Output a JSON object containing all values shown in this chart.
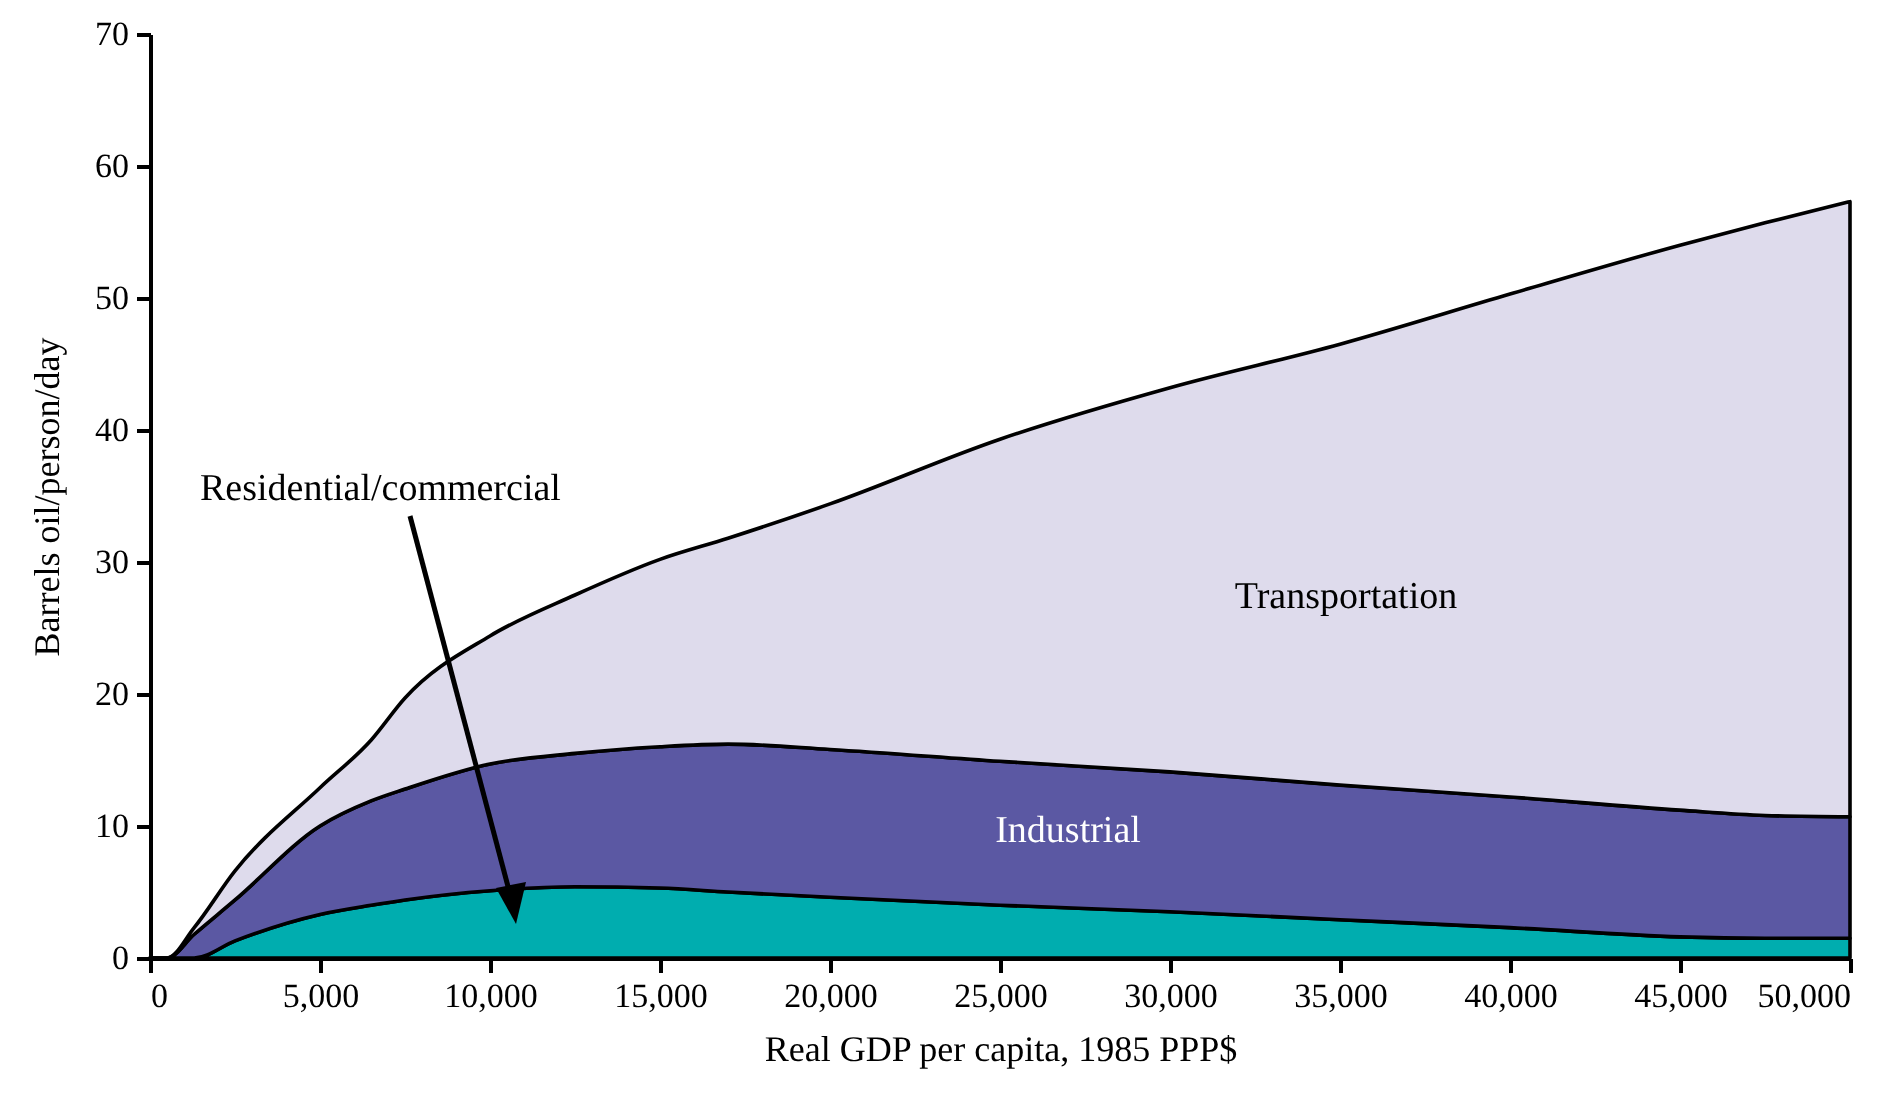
{
  "chart_data": {
    "type": "area",
    "stacked": true,
    "xlabel": "Real GDP per capita, 1985 PPP$",
    "ylabel": "Barrels oil/person/day",
    "x": [
      0,
      500,
      1300,
      2500,
      5000,
      6500,
      7500,
      10000,
      12500,
      15000,
      17000,
      20000,
      25000,
      30000,
      35000,
      40000,
      45000,
      47500,
      50000
    ],
    "series": [
      {
        "name": "Residential/commercial",
        "color": "#00adaf",
        "values": [
          0,
          0,
          0,
          1.3,
          3.3,
          4.0,
          4.4,
          5.1,
          5.4,
          5.3,
          5.0,
          4.6,
          4.0,
          3.5,
          2.9,
          2.3,
          1.6,
          1.5,
          1.5
        ]
      },
      {
        "name": "Industrial",
        "color": "#5b58a3",
        "values": [
          0,
          0,
          1.8,
          3.1,
          6.7,
          7.9,
          8.4,
          9.6,
          10.1,
          10.7,
          11.2,
          11.2,
          10.9,
          10.6,
          10.2,
          9.9,
          9.6,
          9.3,
          9.2
        ]
      },
      {
        "name": "Transportation",
        "color": "#dedbec",
        "values": [
          0,
          0,
          0.5,
          2.2,
          2.9,
          4.6,
          6.9,
          9.7,
          12.0,
          14.2,
          15.6,
          18.6,
          24.4,
          29.1,
          33.4,
          38.1,
          42.8,
          44.9,
          46.6
        ]
      }
    ],
    "xlim": [
      0,
      50000
    ],
    "xticks": [
      0,
      {
        "value": 5000,
        "label": "5,000"
      },
      {
        "value": 10000,
        "label": "10,000"
      },
      {
        "value": 15000,
        "label": "15,000"
      },
      {
        "value": 20000,
        "label": "20,000"
      },
      {
        "value": 25000,
        "label": "25,000"
      },
      {
        "value": 30000,
        "label": "30,000"
      },
      {
        "value": 35000,
        "label": "35,000"
      },
      {
        "value": 40000,
        "label": "40,000"
      },
      {
        "value": 45000,
        "label": "45,000"
      },
      {
        "value": 50000,
        "label": "50,000"
      }
    ],
    "ylim": [
      0,
      70
    ],
    "yticks": [
      0,
      10,
      20,
      30,
      40,
      50,
      60,
      70
    ]
  }
}
